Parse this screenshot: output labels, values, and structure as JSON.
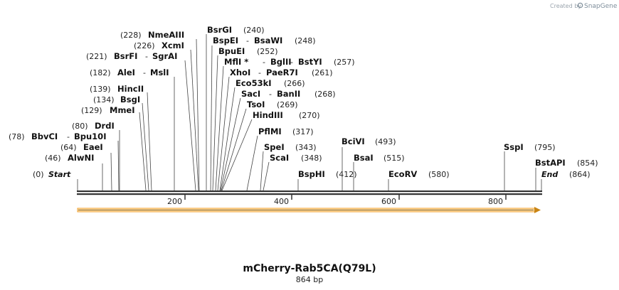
{
  "credit": {
    "prefix": "Created by",
    "brand": "SnapGene"
  },
  "map": {
    "name": "mCherry-Rab5CA(Q79L)",
    "length_label": "864 bp",
    "length": 864,
    "ticks": [
      "200",
      "400",
      "600",
      "800"
    ],
    "ends": {
      "start": {
        "name": "Start",
        "pos": "(0)"
      },
      "end": {
        "name": "End",
        "pos": "(864)"
      }
    },
    "sites": [
      {
        "id": "alwni",
        "name": "AlwNI",
        "pos": "(46)"
      },
      {
        "id": "eaei",
        "name": "EaeI",
        "pos": "(64)"
      },
      {
        "id": "bbvci",
        "name": "BbvCI",
        "pos": "(78)",
        "extra": [
          "Bpu10I"
        ]
      },
      {
        "id": "drdi",
        "name": "DrdI",
        "pos": "(80)"
      },
      {
        "id": "mmei",
        "name": "MmeI",
        "pos": "(129)"
      },
      {
        "id": "bsgi",
        "name": "BsgI",
        "pos": "(134)"
      },
      {
        "id": "hincii",
        "name": "HincII",
        "pos": "(139)"
      },
      {
        "id": "alei",
        "name": "AleI",
        "pos": "(182)",
        "extra": [
          "MslI"
        ]
      },
      {
        "id": "bsrfi",
        "name": "BsrFI",
        "pos": "(221)",
        "extra": [
          "SgrAI"
        ]
      },
      {
        "id": "xcmi",
        "name": "XcmI",
        "pos": "(226)"
      },
      {
        "id": "nmeaiii",
        "name": "NmeAIII",
        "pos": "(228)"
      },
      {
        "id": "bsrgi",
        "name": "BsrGI",
        "pos": "(240)"
      },
      {
        "id": "bspei",
        "name": "BspEI",
        "pos": "(248)",
        "extra": [
          "BsaWI"
        ]
      },
      {
        "id": "bpuei",
        "name": "BpuEI",
        "pos": "(252)"
      },
      {
        "id": "mfli",
        "name": "MflI *",
        "pos": "(257)",
        "extra": [
          "BglII",
          "BstYI"
        ]
      },
      {
        "id": "xhoi",
        "name": "XhoI",
        "pos": "(261)",
        "extra": [
          "PaeR7I"
        ]
      },
      {
        "id": "eco53ki",
        "name": "Eco53kI",
        "pos": "(266)"
      },
      {
        "id": "saci",
        "name": "SacI",
        "pos": "(268)",
        "extra": [
          "BanII"
        ]
      },
      {
        "id": "tsoi",
        "name": "TsoI",
        "pos": "(269)"
      },
      {
        "id": "hindiii",
        "name": "HindIII",
        "pos": "(270)"
      },
      {
        "id": "pflmi",
        "name": "PflMI",
        "pos": "(317)"
      },
      {
        "id": "spei",
        "name": "SpeI",
        "pos": "(343)"
      },
      {
        "id": "scai",
        "name": "ScaI",
        "pos": "(348)"
      },
      {
        "id": "bsphi",
        "name": "BspHI",
        "pos": "(412)"
      },
      {
        "id": "bcivi",
        "name": "BciVI",
        "pos": "(493)"
      },
      {
        "id": "bsai",
        "name": "BsaI",
        "pos": "(515)"
      },
      {
        "id": "ecorv",
        "name": "EcoRV",
        "pos": "(580)"
      },
      {
        "id": "sspi",
        "name": "SspI",
        "pos": "(795)"
      },
      {
        "id": "bstapi",
        "name": "BstAPI",
        "pos": "(854)"
      }
    ],
    "separator": "-"
  },
  "colors": {
    "feature_arrow": "#f5a623",
    "backbone": "#333333"
  }
}
